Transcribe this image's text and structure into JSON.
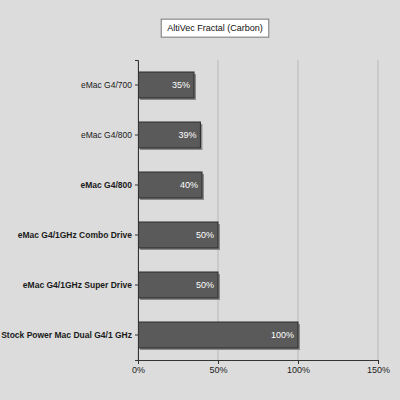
{
  "chart_data": {
    "type": "bar",
    "title": "AltiVec Fractal (Carbon)",
    "orientation": "horizontal",
    "categories": [
      "eMac G4/700",
      "eMac G4/800",
      "eMac G4/800",
      "eMac G4/1GHz Combo Drive",
      "eMac G4/1GHz Super Drive",
      "Stock Power Mac Dual G4/1 GHz"
    ],
    "values": [
      35,
      39,
      40,
      50,
      50,
      100
    ],
    "value_labels": [
      "35%",
      "39%",
      "40%",
      "50%",
      "50%",
      "100%"
    ],
    "data_labels": true,
    "color": "#5a5a5a",
    "xlim": [
      0,
      150
    ],
    "xticks": [
      {
        "value": 0,
        "label": "0%"
      },
      {
        "value": 50,
        "label": "50%"
      },
      {
        "value": 100,
        "label": "100%"
      },
      {
        "value": 150,
        "label": "150%"
      }
    ],
    "grid": true
  }
}
